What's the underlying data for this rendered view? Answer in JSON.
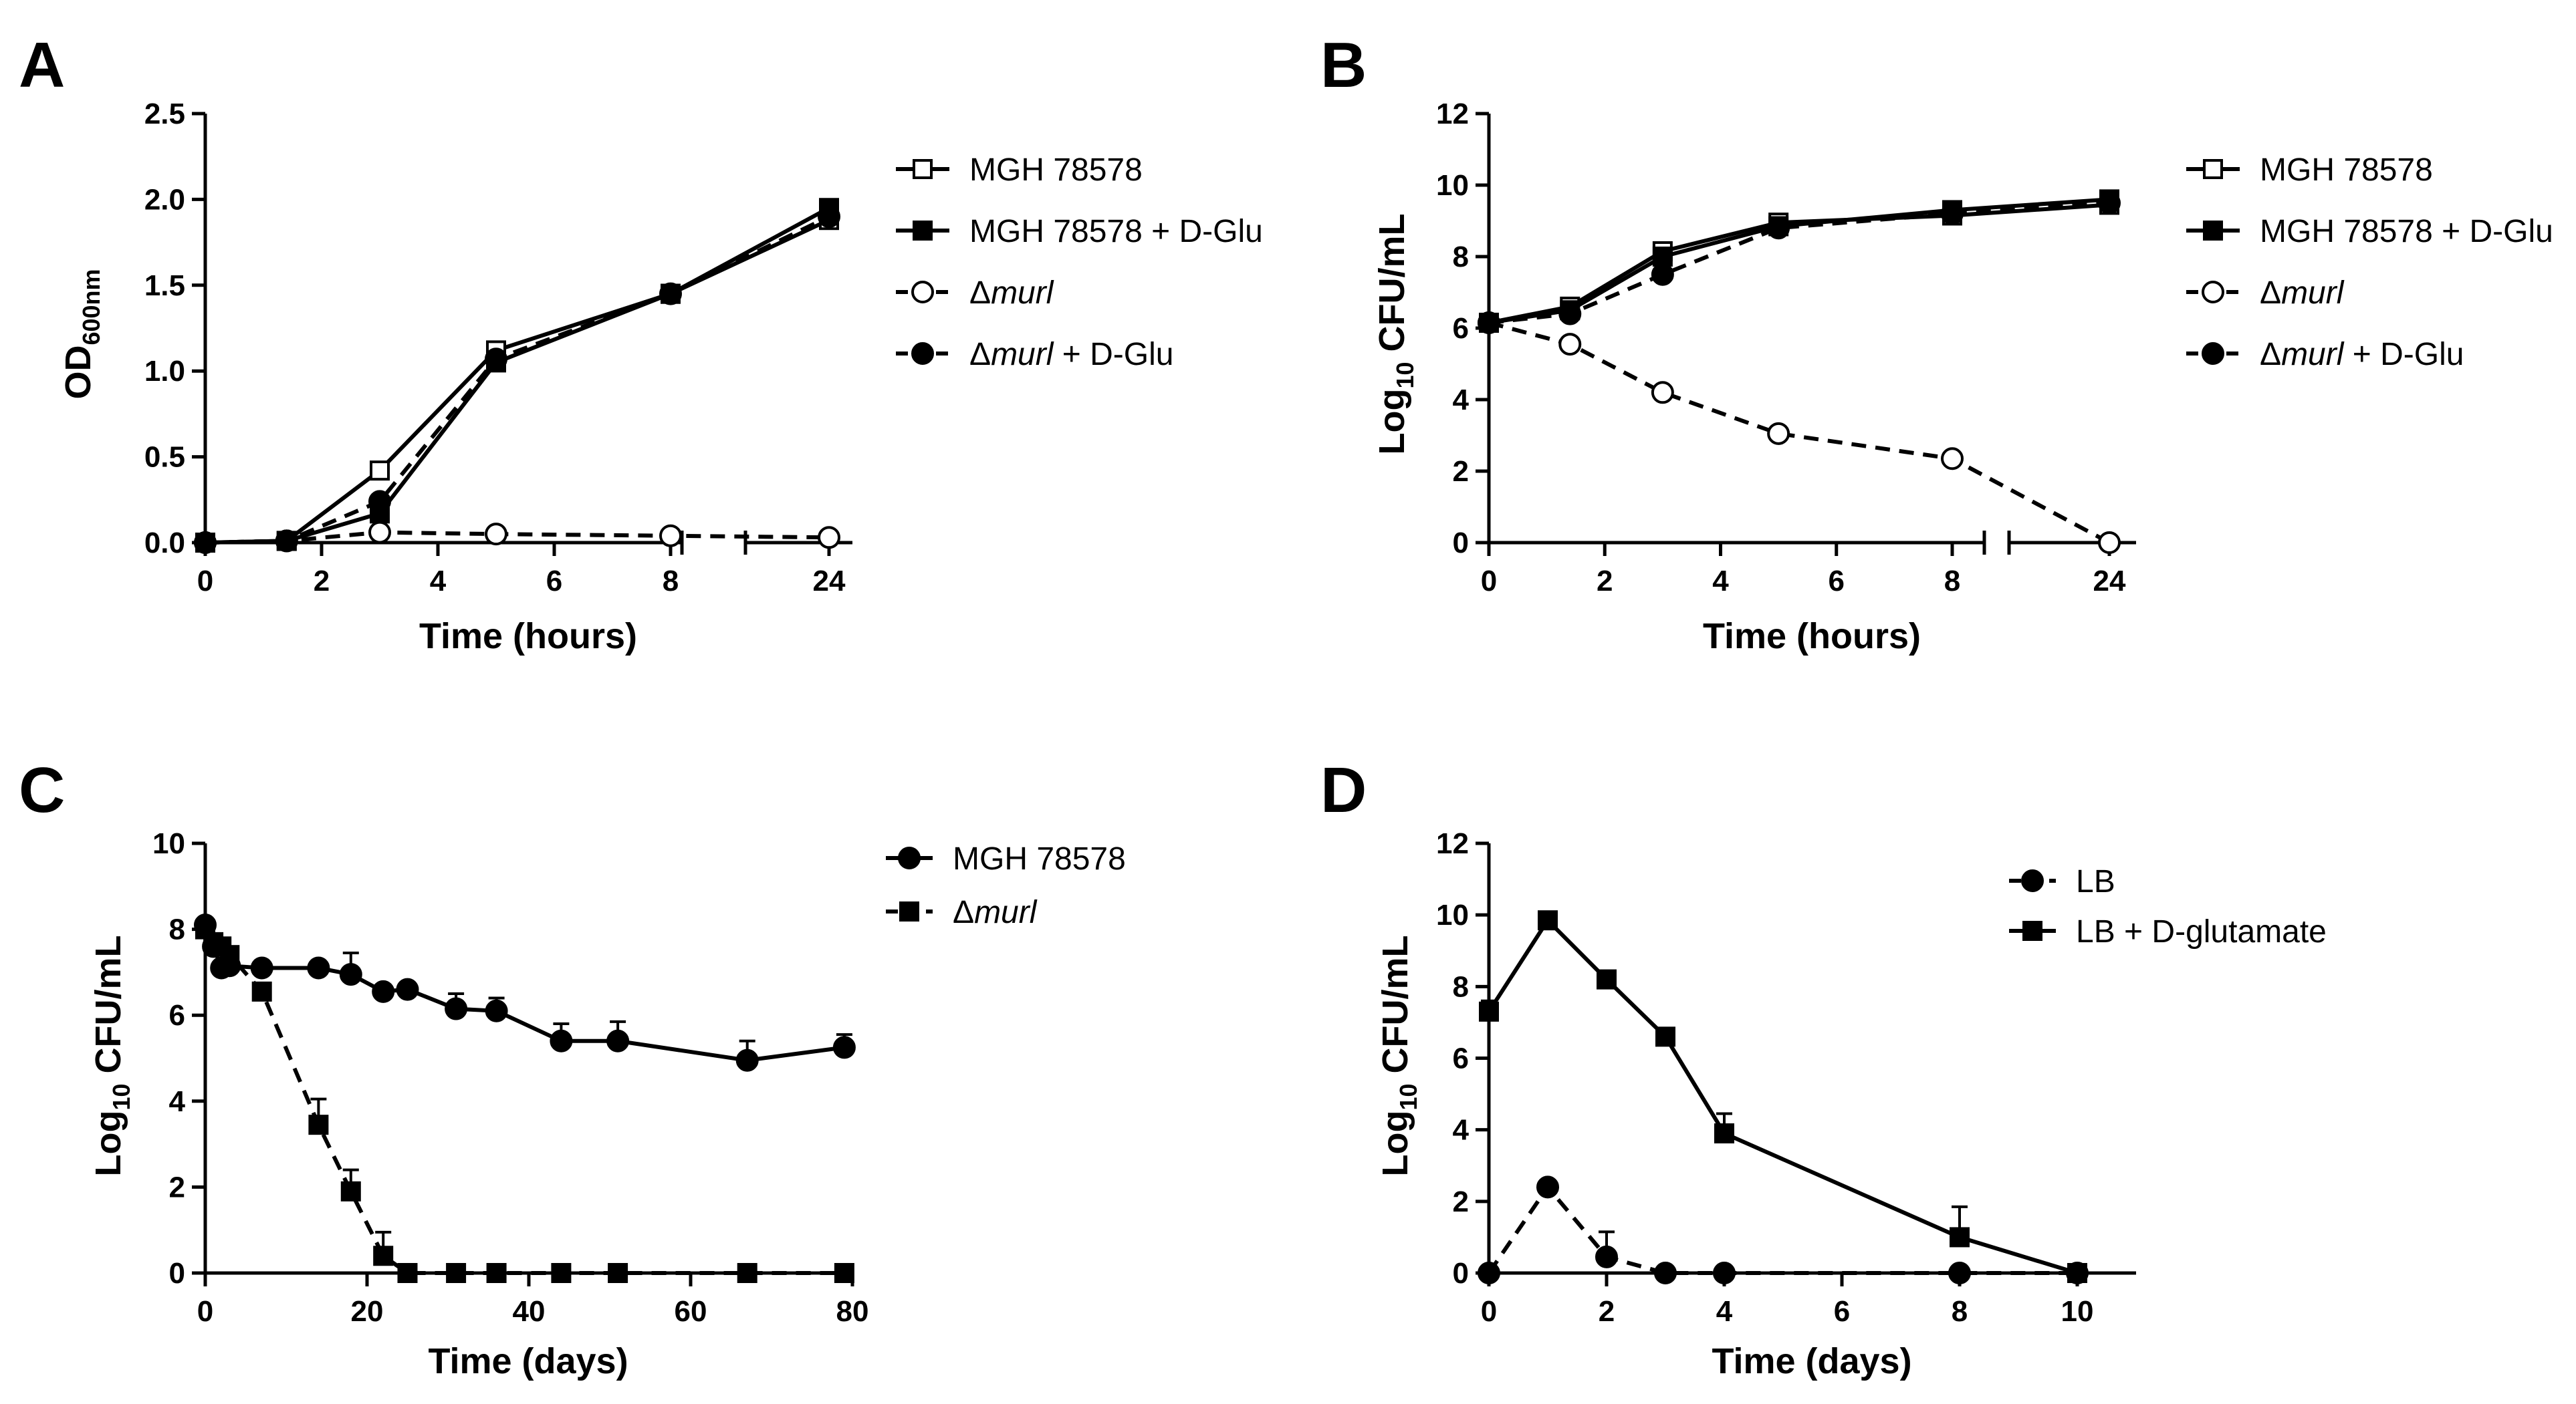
{
  "figure": {
    "panels": [
      "A",
      "B",
      "C",
      "D"
    ]
  },
  "chart_data": [
    {
      "panel": "A",
      "type": "line",
      "xlabel": "Time (hours)",
      "ylabel_main": "OD",
      "ylabel_sub": "600nm",
      "xlim": [
        0,
        24
      ],
      "ylim": [
        0,
        2.5
      ],
      "x_ticks": [
        0,
        2,
        4,
        6,
        8,
        24
      ],
      "x_tick_labels": [
        "0",
        "2",
        "4",
        "6",
        "8",
        "24"
      ],
      "y_ticks": [
        0,
        0.5,
        1.0,
        1.5,
        2.0,
        2.5
      ],
      "y_tick_labels": [
        "0.0",
        "0.5",
        "1.0",
        "1.5",
        "2.0",
        "2.5"
      ],
      "axis_break_x": true,
      "series": [
        {
          "name": "MGH 78578",
          "italic_part": "",
          "suffix": "",
          "x": [
            0,
            1.4,
            3,
            5,
            8,
            24
          ],
          "y": [
            0,
            0.01,
            0.42,
            1.12,
            1.45,
            1.88
          ],
          "marker": "square-open",
          "dash": "solid"
        },
        {
          "name": "MGH 78578 + D-Glu",
          "italic_part": "",
          "suffix": "",
          "x": [
            0,
            1.4,
            3,
            5,
            8,
            24
          ],
          "y": [
            0,
            0.01,
            0.17,
            1.05,
            1.45,
            1.95
          ],
          "marker": "square-filled",
          "dash": "solid"
        },
        {
          "name": "Δmurl",
          "prefix": "Δ",
          "italic_part": "murl",
          "suffix": "",
          "x": [
            0,
            1.4,
            3,
            5,
            8,
            24
          ],
          "y": [
            0,
            0.01,
            0.06,
            0.05,
            0.04,
            0.03
          ],
          "marker": "circle-open",
          "dash": "dashed"
        },
        {
          "name": "Δmurl + D-Glu",
          "prefix": "Δ",
          "italic_part": "murl",
          "suffix": " + D-Glu",
          "x": [
            0,
            1.4,
            3,
            5,
            8,
            24
          ],
          "y": [
            0,
            0.01,
            0.24,
            1.07,
            1.45,
            1.9
          ],
          "marker": "circle-filled",
          "dash": "dashed"
        }
      ]
    },
    {
      "panel": "B",
      "type": "line",
      "xlabel": "Time (hours)",
      "ylabel_main": "Log",
      "ylabel_sub": "10",
      "ylabel_rest": " CFU/mL",
      "xlim": [
        0,
        24
      ],
      "ylim": [
        0,
        12
      ],
      "x_ticks": [
        0,
        2,
        4,
        6,
        8,
        24
      ],
      "x_tick_labels": [
        "0",
        "2",
        "4",
        "6",
        "8",
        "24"
      ],
      "y_ticks": [
        0,
        2,
        4,
        6,
        8,
        10,
        12
      ],
      "y_tick_labels": [
        "0",
        "2",
        "4",
        "6",
        "8",
        "10",
        "12"
      ],
      "axis_break_x": true,
      "series": [
        {
          "name": "MGH 78578",
          "italic_part": "",
          "suffix": "",
          "x": [
            0,
            1.4,
            3,
            5,
            8,
            24
          ],
          "y": [
            6.15,
            6.6,
            8.15,
            8.95,
            9.15,
            9.45
          ],
          "marker": "square-open",
          "dash": "solid"
        },
        {
          "name": "MGH 78578 + D-Glu",
          "italic_part": "",
          "suffix": "",
          "x": [
            0,
            1.4,
            3,
            5,
            8,
            24
          ],
          "y": [
            6.15,
            6.5,
            8.0,
            8.85,
            9.3,
            9.6
          ],
          "marker": "square-filled",
          "dash": "solid"
        },
        {
          "name": "Δmurl",
          "prefix": "Δ",
          "italic_part": "murl",
          "suffix": "",
          "x": [
            0,
            1.4,
            3,
            5,
            8,
            24
          ],
          "y": [
            6.15,
            5.55,
            4.2,
            3.05,
            2.35,
            0
          ],
          "marker": "circle-open",
          "dash": "dashed"
        },
        {
          "name": "Δmurl + D-Glu",
          "prefix": "Δ",
          "italic_part": "murl",
          "suffix": " + D-Glu",
          "x": [
            0,
            1.4,
            3,
            5,
            8,
            24
          ],
          "y": [
            6.15,
            6.4,
            7.5,
            8.8,
            9.2,
            9.5
          ],
          "marker": "circle-filled",
          "dash": "dashed"
        }
      ]
    },
    {
      "panel": "C",
      "type": "line",
      "xlabel": "Time (days)",
      "ylabel_main": "Log",
      "ylabel_sub": "10",
      "ylabel_rest": " CFU/mL",
      "xlim": [
        0,
        80
      ],
      "ylim": [
        0,
        10
      ],
      "x_ticks": [
        0,
        20,
        40,
        60,
        80
      ],
      "x_tick_labels": [
        "0",
        "20",
        "40",
        "60",
        "80"
      ],
      "y_ticks": [
        0,
        2,
        4,
        6,
        8,
        10
      ],
      "y_tick_labels": [
        "0",
        "2",
        "4",
        "6",
        "8",
        "10"
      ],
      "axis_break_x": false,
      "series": [
        {
          "name": "MGH 78578",
          "italic_part": "",
          "suffix": "",
          "x": [
            0,
            1,
            2,
            3,
            7,
            14,
            18,
            22,
            25,
            31,
            36,
            44,
            51,
            67,
            79
          ],
          "y": [
            8.1,
            7.6,
            7.1,
            7.15,
            7.1,
            7.1,
            6.95,
            6.55,
            6.6,
            6.15,
            6.1,
            5.4,
            5.4,
            4.95,
            5.25
          ],
          "err": [
            0,
            0,
            0,
            0,
            0,
            0,
            0.5,
            0,
            0,
            0.35,
            0.3,
            0.4,
            0.45,
            0.45,
            0.3
          ],
          "marker": "circle-filled",
          "dash": "solid"
        },
        {
          "name": "Δmurl",
          "prefix": "Δ",
          "italic_part": "murl",
          "suffix": "",
          "x": [
            0,
            1,
            2,
            3,
            7,
            14,
            18,
            22,
            25,
            31,
            36,
            44,
            51,
            67,
            79
          ],
          "y": [
            8.0,
            7.7,
            7.6,
            7.4,
            6.55,
            3.45,
            1.9,
            0.4,
            0,
            0,
            0,
            0,
            0,
            0,
            0
          ],
          "err": [
            0,
            0,
            0,
            0,
            0,
            0.6,
            0.5,
            0.55,
            0,
            0,
            0,
            0,
            0,
            0,
            0
          ],
          "marker": "square-filled",
          "dash": "dashed"
        }
      ]
    },
    {
      "panel": "D",
      "type": "line",
      "xlabel": "Time (days)",
      "ylabel_main": "Log",
      "ylabel_sub": "10",
      "ylabel_rest": " CFU/mL",
      "xlim": [
        0,
        11
      ],
      "ylim": [
        0,
        12
      ],
      "x_ticks": [
        0,
        2,
        4,
        6,
        8,
        10
      ],
      "x_tick_labels": [
        "0",
        "2",
        "4",
        "6",
        "8",
        "10"
      ],
      "y_ticks": [
        0,
        2,
        4,
        6,
        8,
        10,
        12
      ],
      "y_tick_labels": [
        "0",
        "2",
        "4",
        "6",
        "8",
        "10",
        "12"
      ],
      "axis_break_x": false,
      "series": [
        {
          "name": "LB",
          "italic_part": "",
          "suffix": "",
          "x": [
            0,
            1,
            2,
            3,
            4,
            8,
            10
          ],
          "y": [
            0,
            2.4,
            0.45,
            0,
            0,
            0,
            0
          ],
          "err": [
            0,
            0,
            0.7,
            0,
            0,
            0,
            0
          ],
          "marker": "circle-filled",
          "dash": "dashed"
        },
        {
          "name": "LB + D-glutamate",
          "italic_part": "",
          "suffix": "",
          "x": [
            0,
            1,
            2,
            3,
            4,
            8,
            10
          ],
          "y": [
            7.3,
            9.85,
            8.2,
            6.6,
            3.9,
            1.0,
            0
          ],
          "err": [
            0.3,
            0,
            0,
            0,
            0.55,
            0.85,
            0
          ],
          "marker": "square-filled",
          "dash": "solid"
        }
      ]
    }
  ]
}
